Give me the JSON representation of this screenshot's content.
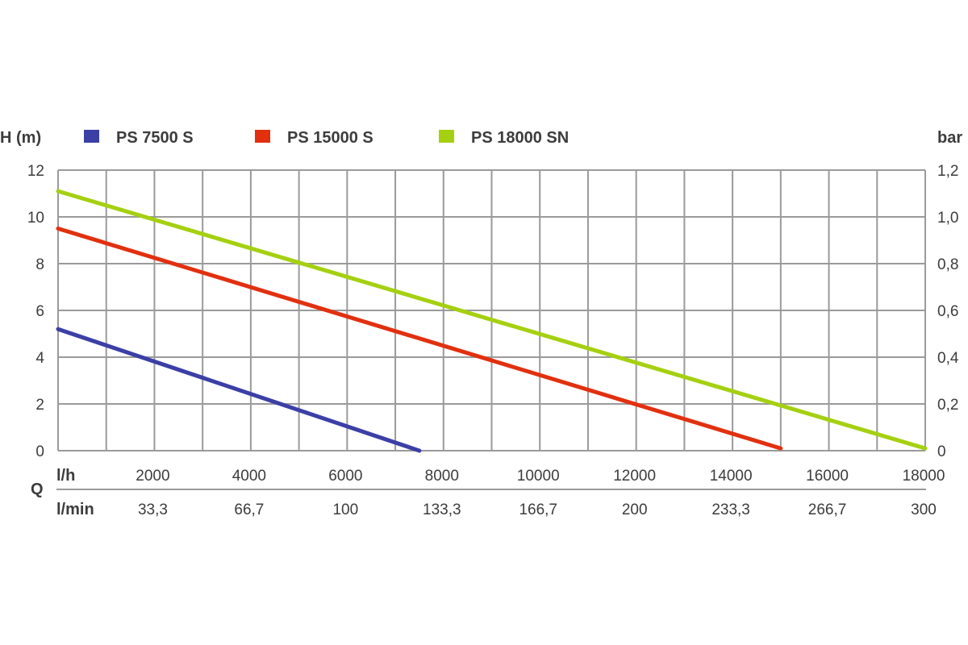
{
  "chart_data": {
    "type": "line",
    "ylabel_left": "H (m)",
    "ylabel_right": "bar",
    "xlabel": "Q",
    "x_unit_primary": "l/h",
    "x_unit_secondary": "l/min",
    "xlim": [
      0,
      18000
    ],
    "ylim": [
      0,
      12
    ],
    "grid": true,
    "legend_position": "top",
    "x_ticks": [
      2000,
      4000,
      6000,
      8000,
      10000,
      12000,
      14000,
      16000,
      18000
    ],
    "x_tick_labels": [
      "2000",
      "4000",
      "6000",
      "8000",
      "10000",
      "12000",
      "14000",
      "16000",
      "18000"
    ],
    "x_secondary_tick_labels": [
      "33,3",
      "66,7",
      "100",
      "133,3",
      "166,7",
      "200",
      "233,3",
      "266,7",
      "300"
    ],
    "y_ticks": [
      0,
      2,
      4,
      6,
      8,
      10,
      12
    ],
    "y_tick_labels": [
      "0",
      "2",
      "4",
      "6",
      "8",
      "10",
      "12"
    ],
    "y_right_tick_labels": [
      "0",
      "0,2",
      "0,4",
      "0,6",
      "0,8",
      "1,0",
      "1,2"
    ],
    "series": [
      {
        "name": "PS 7500 S",
        "color": "#3b3fa6",
        "x": [
          0,
          7500
        ],
        "y": [
          5.2,
          0
        ]
      },
      {
        "name": "PS 15000 S",
        "color": "#e2300f",
        "x": [
          0,
          15000
        ],
        "y": [
          9.5,
          0.1
        ]
      },
      {
        "name": "PS 18000 SN",
        "color": "#a5d010",
        "x": [
          0,
          18000
        ],
        "y": [
          11.1,
          0.1
        ]
      }
    ]
  }
}
